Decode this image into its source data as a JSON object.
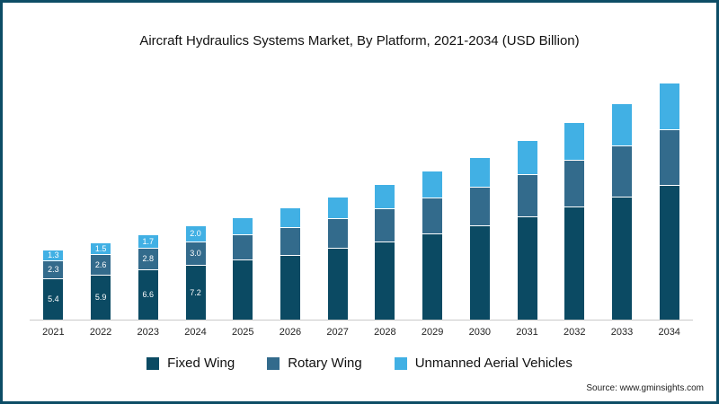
{
  "title": "Aircraft Hydraulics Systems Market, By Platform, 2021-2034 (USD Billion)",
  "source": "Source: www.gminsights.com",
  "chart_data": {
    "type": "bar",
    "stacked": true,
    "title": "Aircraft Hydraulics Systems Market, By Platform, 2021-2034 (USD Billion)",
    "xlabel": "",
    "ylabel": "",
    "ylim": [
      0,
      34
    ],
    "grid": false,
    "legend_position": "bottom",
    "categories": [
      "2021",
      "2022",
      "2023",
      "2024",
      "2025",
      "2026",
      "2027",
      "2028",
      "2029",
      "2030",
      "2031",
      "2032",
      "2033",
      "2034"
    ],
    "labeled_categories": [
      "2021",
      "2022",
      "2023",
      "2024"
    ],
    "series": [
      {
        "name": "Fixed Wing",
        "color": "#0b4a63",
        "values": [
          5.4,
          5.9,
          6.6,
          7.2,
          7.9,
          8.6,
          9.5,
          10.4,
          11.4,
          12.5,
          13.7,
          15.0,
          16.4,
          18.0
        ]
      },
      {
        "name": "Rotary Wing",
        "color": "#336b8c",
        "values": [
          2.3,
          2.6,
          2.8,
          3.0,
          3.3,
          3.6,
          3.9,
          4.3,
          4.7,
          5.1,
          5.6,
          6.1,
          6.7,
          7.3
        ]
      },
      {
        "name": "Unmanned Aerial Vehicles",
        "color": "#41b0e4",
        "values": [
          1.3,
          1.5,
          1.7,
          2.0,
          2.2,
          2.5,
          2.8,
          3.1,
          3.5,
          3.9,
          4.4,
          4.9,
          5.5,
          6.2
        ]
      }
    ]
  }
}
